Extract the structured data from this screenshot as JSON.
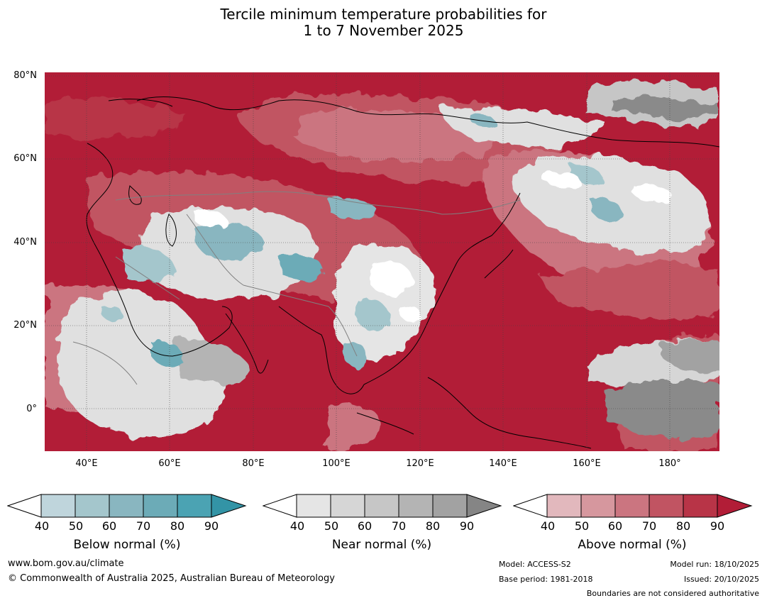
{
  "title": {
    "line1": "Tercile minimum temperature probabilities for",
    "line2": "1 to 7 November 2025"
  },
  "map": {
    "lat_labels": [
      "80°N",
      "60°N",
      "40°N",
      "20°N",
      "0°"
    ],
    "lon_labels": [
      "40°E",
      "60°E",
      "80°E",
      "100°E",
      "120°E",
      "140°E",
      "160°E",
      "180°"
    ]
  },
  "colorbars": [
    {
      "name": "Below normal (%)",
      "ticks": [
        "40",
        "50",
        "60",
        "70",
        "80",
        "90"
      ],
      "colors": [
        "#ffffff",
        "#bfd5dc",
        "#a4c6cc",
        "#89b6c0",
        "#6cabb7",
        "#4ba3b3",
        "#3394a6"
      ]
    },
    {
      "name": "Near normal (%)",
      "ticks": [
        "40",
        "50",
        "60",
        "70",
        "80",
        "90"
      ],
      "colors": [
        "#ffffff",
        "#e5e5e5",
        "#d6d6d6",
        "#c6c6c6",
        "#b4b4b4",
        "#a2a2a2",
        "#858585"
      ]
    },
    {
      "name": "Above normal (%)",
      "ticks": [
        "40",
        "50",
        "60",
        "70",
        "80",
        "90"
      ],
      "colors": [
        "#ffffff",
        "#e2b8bd",
        "#d6979e",
        "#cb7580",
        "#c15462",
        "#b83447",
        "#b21d37"
      ]
    }
  ],
  "footer": {
    "website": "www.bom.gov.au/climate",
    "copyright": "© Commonwealth of Australia 2025, Australian Bureau of Meteorology",
    "model": "Model: ACCESS-S2",
    "base_period": "Base period: 1981-2018",
    "model_run": "Model run: 18/10/2025",
    "issued": "Issued: 20/10/2025",
    "disclaimer": "Boundaries are not considered authoritative"
  },
  "palette": {
    "above_dark": "#b21d37",
    "above_mid": "#c15462",
    "above_light": "#d6979e",
    "near_light": "#e0e0e0",
    "near_mid": "#c6c6c6",
    "near_dark": "#8a8a8a",
    "below_light": "#a4c6cc",
    "below_dark": "#4ba3b3"
  }
}
